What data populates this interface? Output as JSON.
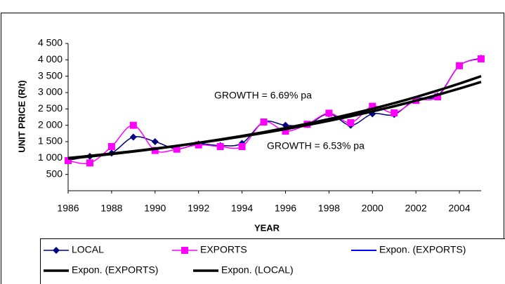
{
  "chart_data": {
    "type": "line",
    "x_label": "YEAR",
    "y_label": "UNIT PRICE (R/t)",
    "x": [
      1986,
      1987,
      1988,
      1989,
      1990,
      1991,
      1992,
      1993,
      1994,
      1995,
      1996,
      1997,
      1998,
      1999,
      2000,
      2001,
      2002,
      2003,
      2004,
      2005
    ],
    "series": [
      {
        "name": "LOCAL",
        "color": "#000080",
        "marker": "diamond",
        "values": [
          930,
          1050,
          1150,
          1640,
          1500,
          1280,
          1430,
          1380,
          1450,
          2100,
          2000,
          2020,
          2350,
          2000,
          2350,
          2330,
          2800,
          2900,
          3820,
          4050
        ]
      },
      {
        "name": "EXPORTS",
        "color": "#ff00ff",
        "marker": "square",
        "values": [
          920,
          850,
          1350,
          2000,
          1230,
          1270,
          1400,
          1350,
          1350,
          2100,
          1820,
          2030,
          2370,
          2080,
          2580,
          2380,
          2760,
          2870,
          3820,
          4030
        ]
      }
    ],
    "trendlines": [
      {
        "name": "Expon. (EXPORTS)",
        "color": "#0000ff",
        "values": [
          980,
          1048,
          1121,
          1198,
          1281,
          1370,
          1465,
          1567,
          1675,
          1791,
          1915,
          2048,
          2190,
          2342,
          2504,
          2678,
          2863,
          3062,
          3274,
          3501
        ]
      },
      {
        "name": "Expon. (EXPORTS)",
        "color": "#000000",
        "values": [
          980,
          1048,
          1121,
          1198,
          1281,
          1370,
          1465,
          1567,
          1675,
          1791,
          1915,
          2048,
          2190,
          2342,
          2504,
          2678,
          2863,
          3062,
          3274,
          3501
        ]
      },
      {
        "name": "Expon. (LOCAL)",
        "color": "#000000",
        "values": [
          1000,
          1065,
          1135,
          1209,
          1288,
          1372,
          1461,
          1557,
          1658,
          1767,
          1882,
          2005,
          2136,
          2275,
          2424,
          2582,
          2751,
          2930,
          3122,
          3325
        ]
      }
    ],
    "annotations": [
      "GROWTH = 6.69% pa",
      "GROWTH = 6.53% pa"
    ],
    "xlim": [
      1986,
      2005
    ],
    "xticks": [
      1986,
      1988,
      1990,
      1992,
      1994,
      1996,
      1998,
      2000,
      2002,
      2004
    ],
    "ylim": [
      0,
      4500
    ],
    "yticks": [
      500,
      {
        "value": 1000,
        "label": "1 000"
      },
      {
        "value": 1500,
        "label": "1 500"
      },
      {
        "value": 2000,
        "label": "2 000"
      },
      {
        "value": 2500,
        "label": "2 500"
      },
      {
        "value": 3000,
        "label": "3 000"
      },
      {
        "value": 3500,
        "label": "3 500"
      },
      {
        "value": 4000,
        "label": "4 000"
      },
      {
        "value": 4500,
        "label": "4 500"
      }
    ],
    "grid": false
  }
}
